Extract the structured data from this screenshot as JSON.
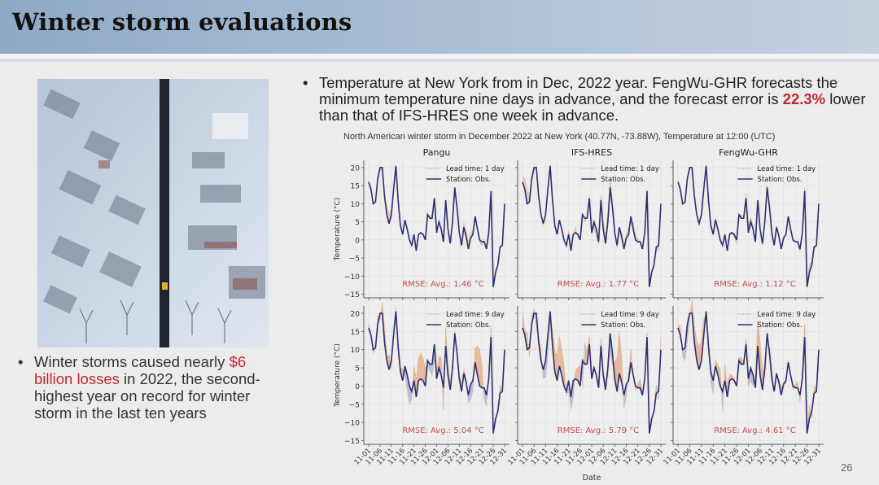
{
  "header": {
    "title": "Winter storm evaluations"
  },
  "left_panel": {
    "photo_alt": "Aerial view of a snow-covered neighborhood with a road running through it",
    "bullet": {
      "prefix": "Winter storms caused nearly ",
      "highlight": "$6 billion losses",
      "suffix": " in 2022, the second-highest year on record for winter storm in the last ten years"
    }
  },
  "right_panel": {
    "bullet": {
      "text_1": "Temperature at New York from in Dec, 2022 year. FengWu-GHR forecasts the minimum temperature nine days in advance, and the forecast error is ",
      "highlight": "22.3%",
      "text_2": " lower than that of IFS-HRES one week in advance."
    },
    "figure_title": "North American winter storm in December 2022 at New York (40.77N, -73.88W), Temperature at 12:00 (UTC)"
  },
  "page_number": "26",
  "colors": {
    "obs_line": "#2e2f6e",
    "forecast_line": "#e0a57a",
    "fill_over": "#e6a77f",
    "fill_under": "#9fb3e6",
    "rmse_text": "#c0504d",
    "accent_red": "#c0282d"
  },
  "chart_data": [
    {
      "type": "line",
      "panel": "Pangu, lead time 1 day",
      "title": "Pangu",
      "xlabel": "",
      "ylabel": "Temperature (°C)",
      "ylim": [
        -16,
        22
      ],
      "yticks": [
        20,
        15,
        10,
        5,
        0,
        -5,
        -10,
        -15
      ],
      "grid": true,
      "legend": [
        "Lead time: 1 day",
        "Station: Obs."
      ],
      "legend_position": "top-right",
      "annotation": "RMSE: Avg.: 1.46 °C",
      "forecast_offset_note": "forecast closely tracks observations",
      "series": [
        {
          "name": "Station: Obs.",
          "ref": "observed"
        },
        {
          "name": "Lead time: 1 day",
          "lead_days": 1,
          "deviation_scale": 0.25
        }
      ]
    },
    {
      "type": "line",
      "panel": "IFS-HRES, lead time 1 day",
      "title": "IFS-HRES",
      "ylim": [
        -16,
        22
      ],
      "grid": true,
      "legend": [
        "Lead time: 1 day",
        "Station: Obs."
      ],
      "legend_position": "top-right",
      "annotation": "RMSE: Avg.: 1.77 °C",
      "series": [
        {
          "name": "Station: Obs.",
          "ref": "observed"
        },
        {
          "name": "Lead time: 1 day",
          "lead_days": 1,
          "deviation_scale": 0.35
        }
      ]
    },
    {
      "type": "line",
      "panel": "FengWu-GHR, lead time 1 day",
      "title": "FengWu-GHR",
      "ylim": [
        -16,
        22
      ],
      "grid": true,
      "legend": [
        "Lead time: 1 day",
        "Station: Obs."
      ],
      "legend_position": "top-right",
      "annotation": "RMSE: Avg.: 1.12 °C",
      "series": [
        {
          "name": "Station: Obs.",
          "ref": "observed"
        },
        {
          "name": "Lead time: 1 day",
          "lead_days": 1,
          "deviation_scale": 0.2
        }
      ]
    },
    {
      "type": "line",
      "panel": "Pangu, lead time 9 day",
      "title": "",
      "ylabel": "Temperature (°C)",
      "ylim": [
        -16,
        22
      ],
      "yticks": [
        20,
        15,
        10,
        5,
        0,
        -5,
        -10,
        -15
      ],
      "grid": true,
      "legend": [
        "Lead time: 9 day",
        "Station: Obs."
      ],
      "legend_position": "top-right",
      "annotation": "RMSE: Avg.: 5.04 °C",
      "series": [
        {
          "name": "Station: Obs.",
          "ref": "observed"
        },
        {
          "name": "Lead time: 9 day",
          "lead_days": 9,
          "deviation_scale": 1.0
        }
      ]
    },
    {
      "type": "line",
      "panel": "IFS-HRES, lead time 9 day",
      "title": "",
      "xlabel": "Date",
      "ylim": [
        -16,
        22
      ],
      "grid": true,
      "legend": [
        "Lead time: 9 day",
        "Station: Obs."
      ],
      "legend_position": "top-right",
      "annotation": "RMSE: Avg.: 5.79 °C",
      "series": [
        {
          "name": "Station: Obs.",
          "ref": "observed"
        },
        {
          "name": "Lead time: 9 day",
          "lead_days": 9,
          "deviation_scale": 1.15
        }
      ]
    },
    {
      "type": "line",
      "panel": "FengWu-GHR, lead time 9 day",
      "title": "",
      "ylim": [
        -16,
        22
      ],
      "grid": true,
      "legend": [
        "Lead time: 9 day",
        "Station: Obs."
      ],
      "legend_position": "top-right",
      "annotation": "RMSE: Avg.: 4.61 °C",
      "series": [
        {
          "name": "Station: Obs.",
          "ref": "observed"
        },
        {
          "name": "Lead time: 9 day",
          "lead_days": 9,
          "deviation_scale": 0.9
        }
      ]
    }
  ],
  "shared_series": {
    "x_tick_labels": [
      "11-01",
      "11-06",
      "11-11",
      "11-16",
      "11-21",
      "11-26",
      "12-01",
      "12-06",
      "12-11",
      "12-16",
      "12-21",
      "12-26",
      "12-31"
    ],
    "observed": [
      16,
      14,
      10,
      10.5,
      17,
      20,
      20,
      12,
      7,
      4.5,
      7,
      14,
      20.5,
      11,
      4,
      1.5,
      5.5,
      3,
      0,
      -1.5,
      1.5,
      -3,
      1.5,
      2,
      1.5,
      0,
      7,
      6,
      6,
      11.5,
      2,
      5,
      3,
      -0.5,
      11,
      3,
      -1,
      5,
      14.5,
      9,
      2,
      -1.5,
      3.5,
      1,
      -2.5,
      0.5,
      1.5,
      6.5,
      3,
      0,
      -0.5,
      -0.5,
      -2.5,
      2,
      13.5,
      -13,
      -9,
      -7,
      -2,
      -1.5,
      10
    ],
    "forecast_deviation_9day": [
      1,
      2,
      1,
      1.5,
      -2,
      -4,
      -3,
      4,
      8,
      10,
      6,
      -3,
      -3,
      2,
      3,
      0.5,
      -1,
      1,
      2,
      0.5,
      -1,
      1,
      0,
      -1,
      1,
      2,
      -2,
      3,
      4,
      1,
      4,
      -2,
      2,
      1,
      -3,
      1,
      3,
      -2,
      -4,
      -5,
      -2,
      4,
      5,
      6,
      7,
      6,
      5,
      -1,
      -2,
      -3,
      -4,
      2,
      3,
      5,
      -6,
      5,
      3,
      2,
      1,
      0.5,
      0
    ]
  }
}
